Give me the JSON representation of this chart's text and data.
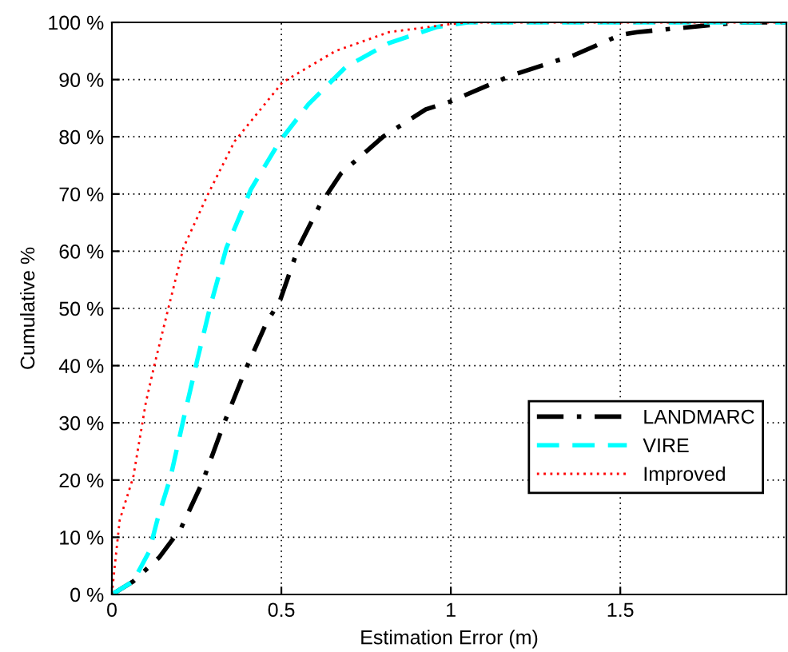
{
  "chart_data": {
    "type": "line",
    "xlabel": "Estimation Error (m)",
    "ylabel": "Cumulative %",
    "xlim": [
      0,
      1.99
    ],
    "xticks": [
      0,
      0.5,
      1,
      1.5
    ],
    "ylim": [
      0,
      100
    ],
    "yticks": [
      {
        "value": 0,
        "label": "0 %"
      },
      {
        "value": 10,
        "label": "10 %"
      },
      {
        "value": 20,
        "label": "20 %"
      },
      {
        "value": 30,
        "label": "30 %"
      },
      {
        "value": 40,
        "label": "40 %"
      },
      {
        "value": 50,
        "label": "50 %"
      },
      {
        "value": 60,
        "label": "60 %"
      },
      {
        "value": 70,
        "label": "70 %"
      },
      {
        "value": 80,
        "label": "80 %"
      },
      {
        "value": 90,
        "label": "90 %"
      },
      {
        "value": 100,
        "label": "100 %"
      }
    ],
    "grid": true,
    "legend": "bottom right",
    "marker": "none",
    "series": [
      {
        "name": "LANDMARC",
        "color": "#000000",
        "line_style": "dashdot",
        "x": [
          0,
          0.063,
          0.14,
          0.204,
          0.267,
          0.33,
          0.393,
          0.456,
          0.495,
          0.55,
          0.613,
          0.676,
          0.8,
          0.926,
          1.0,
          1.177,
          1.365,
          1.5,
          1.55,
          1.78,
          1.85,
          1.99
        ],
        "values": [
          0,
          2.3,
          6.5,
          11.6,
          19.6,
          29.8,
          39.1,
          47.5,
          51.2,
          60.6,
          68,
          73.6,
          80,
          84.8,
          86.2,
          90.7,
          94.3,
          97.8,
          98.3,
          99.6,
          100,
          100
        ]
      },
      {
        "name": "VIRE",
        "color": "#00ffff",
        "line_style": "dashed",
        "x": [
          0,
          0.063,
          0.11,
          0.134,
          0.173,
          0.212,
          0.252,
          0.29,
          0.338,
          0.41,
          0.495,
          0.58,
          0.69,
          0.818,
          0.96,
          1.05,
          1.99
        ],
        "values": [
          0,
          2.3,
          7.5,
          13,
          20.5,
          30.8,
          41,
          50.3,
          60.6,
          70.8,
          79.2,
          85.7,
          92.2,
          96.4,
          99.2,
          100,
          100
        ]
      },
      {
        "name": "Improved",
        "color": "#ff0000",
        "line_style": "dotted",
        "x": [
          0,
          0.008,
          0.023,
          0.063,
          0.1,
          0.125,
          0.164,
          0.211,
          0.283,
          0.362,
          0.503,
          0.66,
          0.818,
          1.0,
          1.05,
          1.99
        ],
        "values": [
          0,
          4.7,
          13,
          20.5,
          33.5,
          40,
          49.4,
          60.6,
          69.9,
          79.2,
          89.5,
          95,
          98.3,
          99.7,
          100,
          100
        ]
      }
    ]
  }
}
